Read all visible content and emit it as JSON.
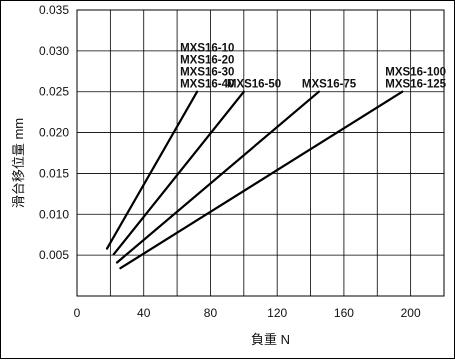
{
  "chart_data": {
    "type": "line",
    "xlabel": "負重 N",
    "ylabel": "滑台移位量 mm",
    "xlim": [
      0,
      220
    ],
    "ylim": [
      0,
      0.035
    ],
    "x_ticks": [
      0,
      40,
      80,
      120,
      160,
      200
    ],
    "y_ticks": [
      0.005,
      0.01,
      0.015,
      0.02,
      0.025,
      0.03,
      0.035
    ],
    "y_tick_labels": [
      "0.005",
      "0.010",
      "0.015",
      "0.020",
      "0.025",
      "0.030",
      "0.035"
    ],
    "grid": true,
    "series": [
      {
        "labels": [
          "MXS16-10",
          "MXS16-20",
          "MXS16-30",
          "MXS16-40"
        ],
        "x": [
          18,
          72
        ],
        "y": [
          0.0058,
          0.025
        ]
      },
      {
        "labels": [
          "MXS16-50"
        ],
        "x": [
          22,
          100
        ],
        "y": [
          0.0051,
          0.025
        ]
      },
      {
        "labels": [
          "MXS16-75"
        ],
        "x": [
          24,
          145
        ],
        "y": [
          0.0041,
          0.025
        ]
      },
      {
        "labels": [
          "MXS16-100",
          "MXS16-125"
        ],
        "x": [
          26,
          195
        ],
        "y": [
          0.0034,
          0.025
        ]
      }
    ]
  }
}
